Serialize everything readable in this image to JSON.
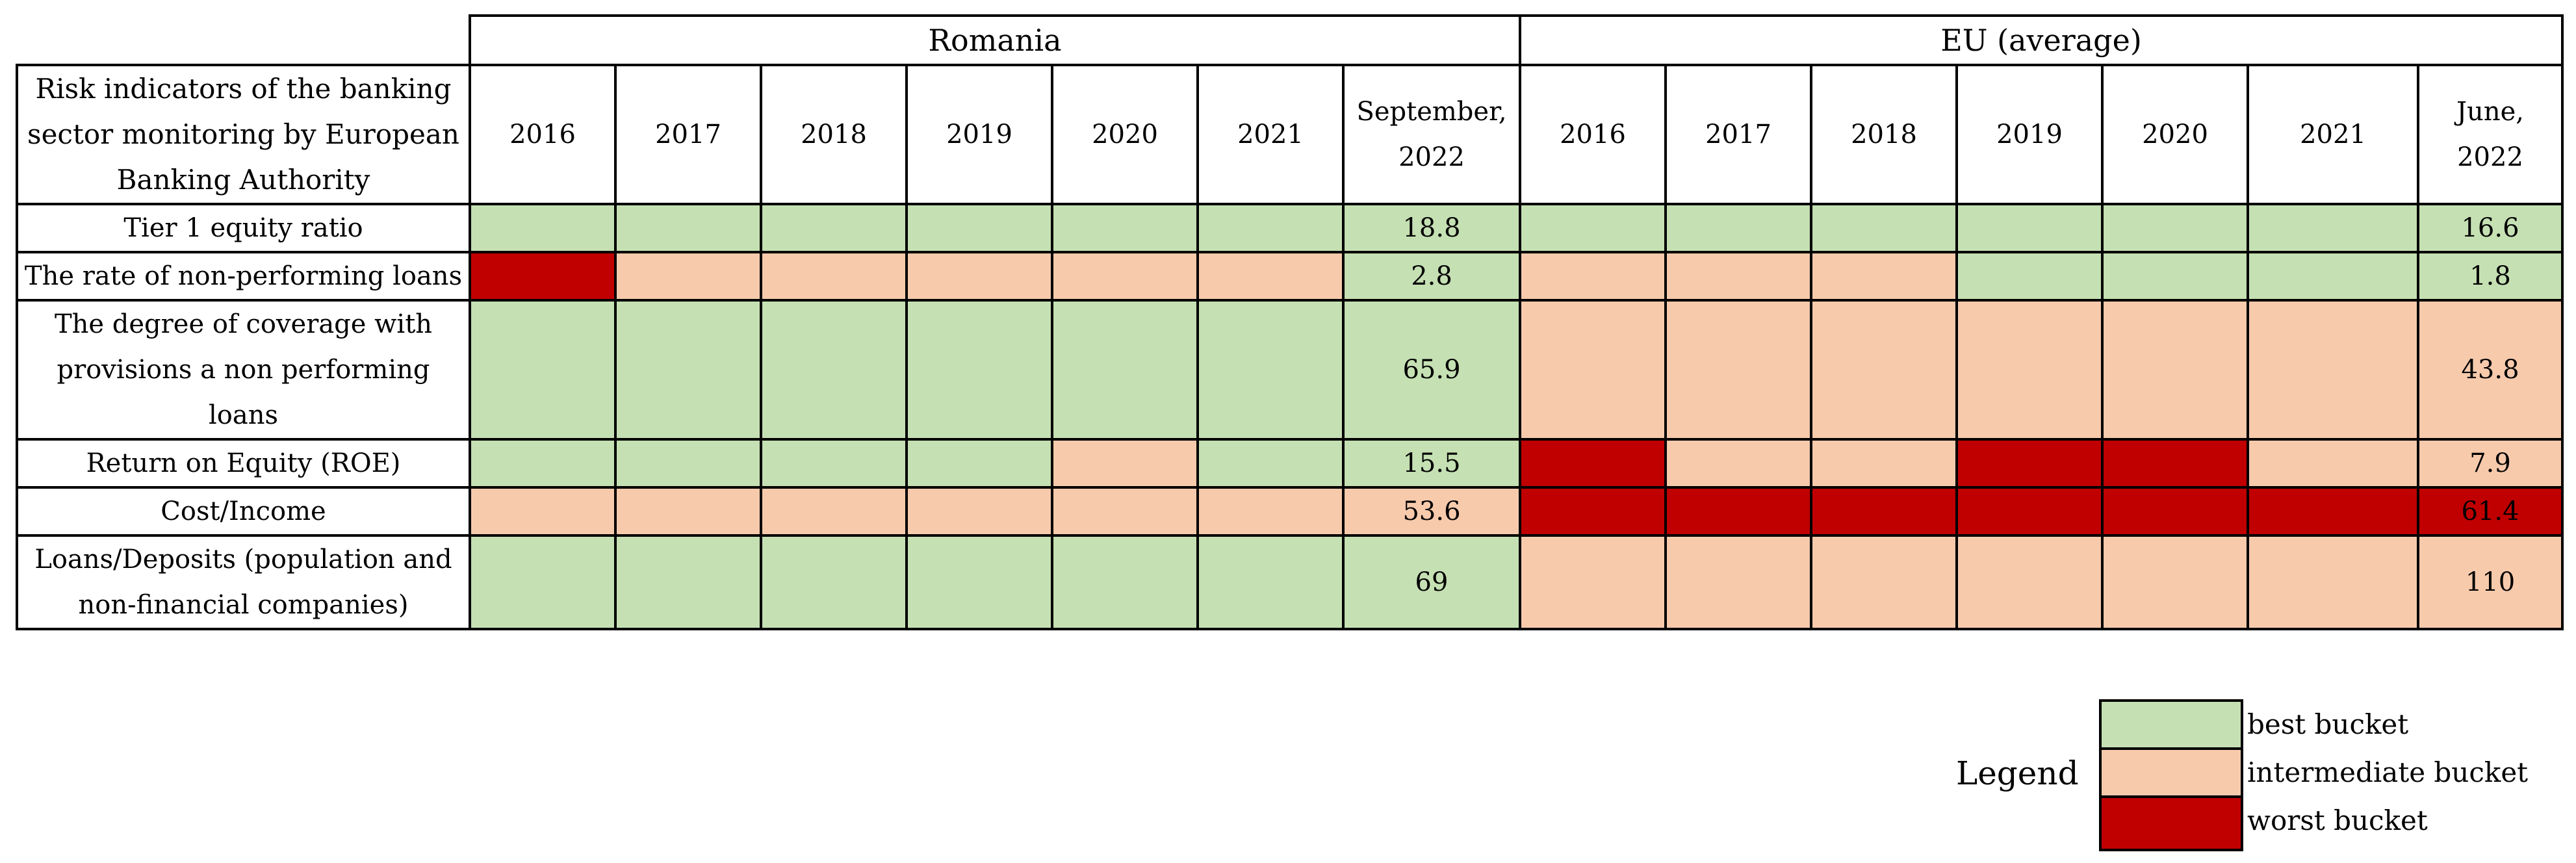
{
  "table": {
    "regions": [
      "Romania",
      "EU (average)"
    ],
    "indicator_header": "Risk indicators of the banking sector monitoring by European Banking Authority",
    "romania_columns": [
      "2016",
      "2017",
      "2018",
      "2019",
      "2020",
      "2021",
      "September, 2022"
    ],
    "eu_columns": [
      "2016",
      "2017",
      "2018",
      "2019",
      "2020",
      "2021",
      "June, 2022"
    ],
    "rows": [
      {
        "indicator": "Tier 1 equity ratio",
        "romania_buckets": [
          "best",
          "best",
          "best",
          "best",
          "best",
          "best",
          "best"
        ],
        "romania_value": "18.8",
        "eu_buckets": [
          "best",
          "best",
          "best",
          "best",
          "best",
          "best",
          "best"
        ],
        "eu_value": "16.6"
      },
      {
        "indicator": "The rate of non-performing loans",
        "romania_buckets": [
          "worst",
          "intermediate",
          "intermediate",
          "intermediate",
          "intermediate",
          "intermediate",
          "best"
        ],
        "romania_value": "2.8",
        "eu_buckets": [
          "intermediate",
          "intermediate",
          "intermediate",
          "best",
          "best",
          "best",
          "best"
        ],
        "eu_value": "1.8"
      },
      {
        "indicator": "The degree of coverage with provisions a non performing loans",
        "romania_buckets": [
          "best",
          "best",
          "best",
          "best",
          "best",
          "best",
          "best"
        ],
        "romania_value": "65.9",
        "eu_buckets": [
          "intermediate",
          "intermediate",
          "intermediate",
          "intermediate",
          "intermediate",
          "intermediate",
          "intermediate"
        ],
        "eu_value": "43.8"
      },
      {
        "indicator": "Return on Equity (ROE)",
        "romania_buckets": [
          "best",
          "best",
          "best",
          "best",
          "intermediate",
          "best",
          "best"
        ],
        "romania_value": "15.5",
        "eu_buckets": [
          "worst",
          "intermediate",
          "intermediate",
          "worst",
          "worst",
          "intermediate",
          "intermediate"
        ],
        "eu_value": "7.9"
      },
      {
        "indicator": "Cost/Income",
        "romania_buckets": [
          "intermediate",
          "intermediate",
          "intermediate",
          "intermediate",
          "intermediate",
          "intermediate",
          "intermediate"
        ],
        "romania_value": "53.6",
        "eu_buckets": [
          "worst",
          "worst",
          "worst",
          "worst",
          "worst",
          "worst",
          "worst"
        ],
        "eu_value": "61.4"
      },
      {
        "indicator": "Loans/Deposits (population and non-financial companies)",
        "romania_buckets": [
          "best",
          "best",
          "best",
          "best",
          "best",
          "best",
          "best"
        ],
        "romania_value": "69",
        "eu_buckets": [
          "intermediate",
          "intermediate",
          "intermediate",
          "intermediate",
          "intermediate",
          "intermediate",
          "intermediate"
        ],
        "eu_value": "110"
      }
    ]
  },
  "legend": {
    "title": "Legend",
    "items": [
      {
        "label": "best bucket",
        "color": "#c5e0b3"
      },
      {
        "label": "intermediate bucket",
        "color": "#f7caac"
      },
      {
        "label": "worst bucket",
        "color": "#c00000"
      }
    ]
  }
}
